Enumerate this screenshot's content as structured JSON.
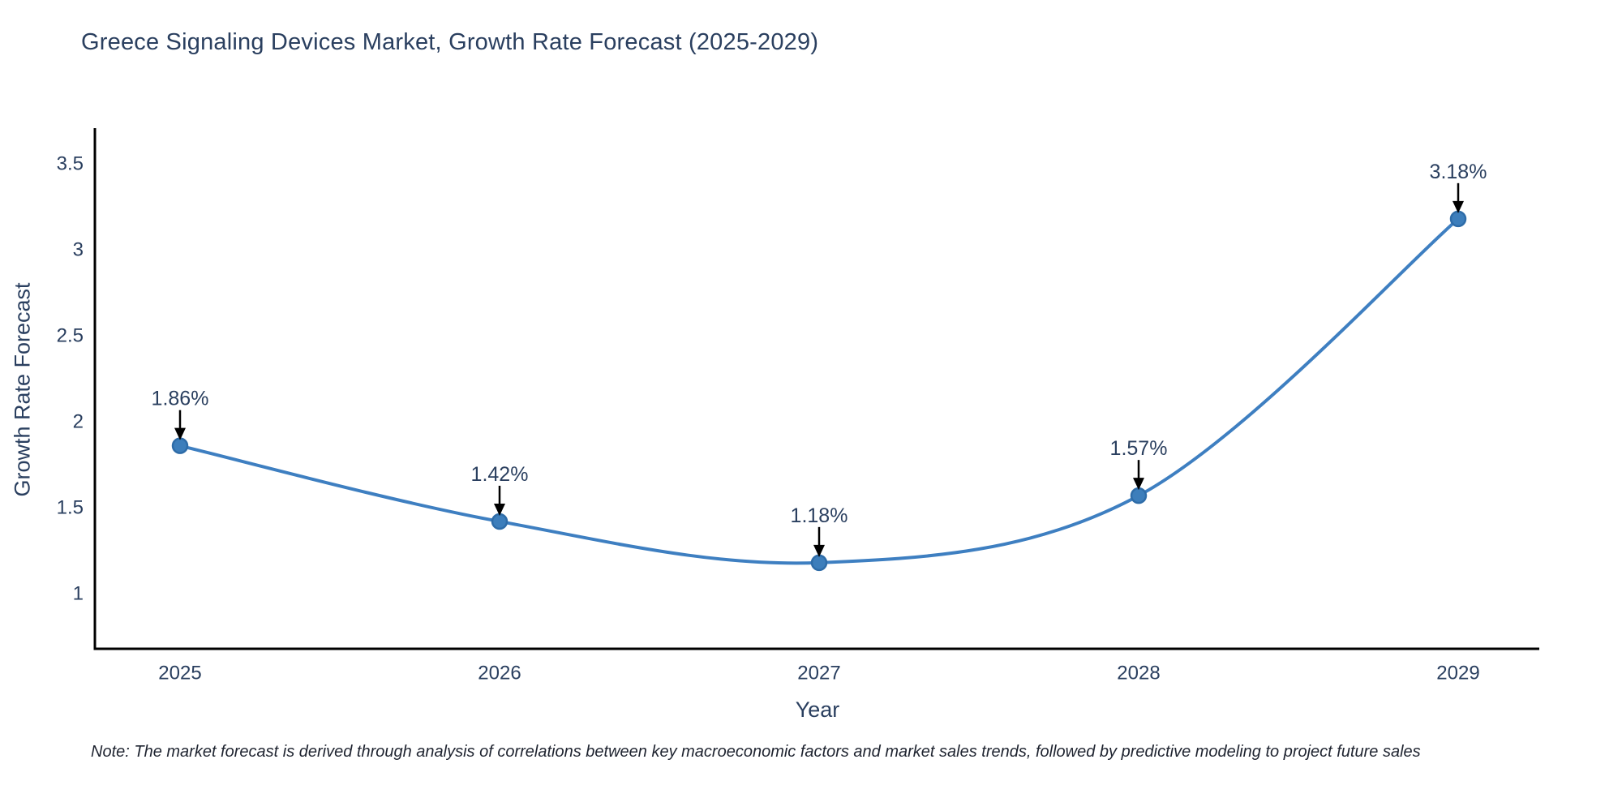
{
  "chart_data": {
    "type": "line",
    "title": "Greece Signaling Devices Market, Growth Rate Forecast (2025-2029)",
    "xlabel": "Year",
    "ylabel": "Growth Rate Forecast",
    "categories": [
      "2025",
      "2026",
      "2027",
      "2028",
      "2029"
    ],
    "series": [
      {
        "name": "Growth Rate Forecast",
        "values": [
          1.86,
          1.42,
          1.18,
          1.57,
          3.18
        ],
        "point_labels": [
          "1.86%",
          "1.42%",
          "1.18%",
          "1.57%",
          "3.18%"
        ]
      }
    ],
    "ytick_labels": [
      "1",
      "1.5",
      "2",
      "2.5",
      "3",
      "3.5"
    ],
    "ytick_values": [
      1,
      1.5,
      2,
      2.5,
      3,
      3.5
    ],
    "ylim": [
      0.68,
      3.87
    ],
    "line_shape": "spline",
    "grid": false,
    "legend_position": "none",
    "colors": {
      "line": "#3e7fc1",
      "marker_fill": "#3d7ebb",
      "marker_edge": "#2e6ca8",
      "axis_line": "#000000",
      "tick_text": "#2a3f5f",
      "annotation_text": "#2a3f5f",
      "annotation_arrow": "#000000",
      "background": "#ffffff"
    }
  },
  "note": {
    "text": "Note: The market forecast is derived through analysis of correlations between key macroeconomic factors and market sales trends, followed by predictive modeling to project future sales"
  }
}
